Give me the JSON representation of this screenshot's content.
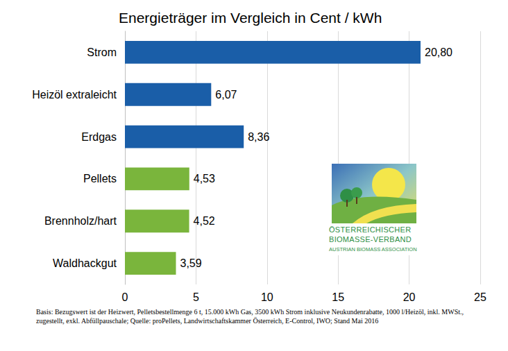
{
  "chart_data": {
    "type": "bar",
    "title": "Energieträger im Vergleich in Cent / kWh",
    "orientation": "horizontal",
    "categories": [
      "Strom",
      "Heizöl extraleicht",
      "Erdgas",
      "Pellets",
      "Brennholz/hart",
      "Waldhackgut"
    ],
    "values": [
      20.8,
      6.07,
      8.36,
      4.53,
      4.52,
      3.59
    ],
    "value_labels": [
      "20,80",
      "6,07",
      "8,36",
      "4,53",
      "4,52",
      "3,59"
    ],
    "colors": [
      "#1a5ea8",
      "#1a5ea8",
      "#1a5ea8",
      "#7ab53c",
      "#7ab53c",
      "#7ab53c"
    ],
    "data_labels": true,
    "xlim": [
      0,
      25
    ],
    "xticks": [
      0,
      5,
      10,
      15,
      20,
      25
    ],
    "grid": true,
    "annotations": {
      "source": "Basis: Bezugswert ist der Heizwert, Pelletsbestellmenge 6 t, 15.000 kWh Gas, 3500 kWh Strom inklusive Neukundenrabatte, 1000 l/Heizöl, inkl. MWSt., zugestellt, exkl. Abfüllpauschale; Quelle: proPellets, Landwirtschaftskammer Österreich, E-Control, IWO; Stand Mai 2016",
      "logo": [
        "ÖSTERREICHISCHER",
        "BIOMASSE-VERBAND",
        "AUSTRIAN BIOMASS ASSOCIATION"
      ]
    }
  }
}
